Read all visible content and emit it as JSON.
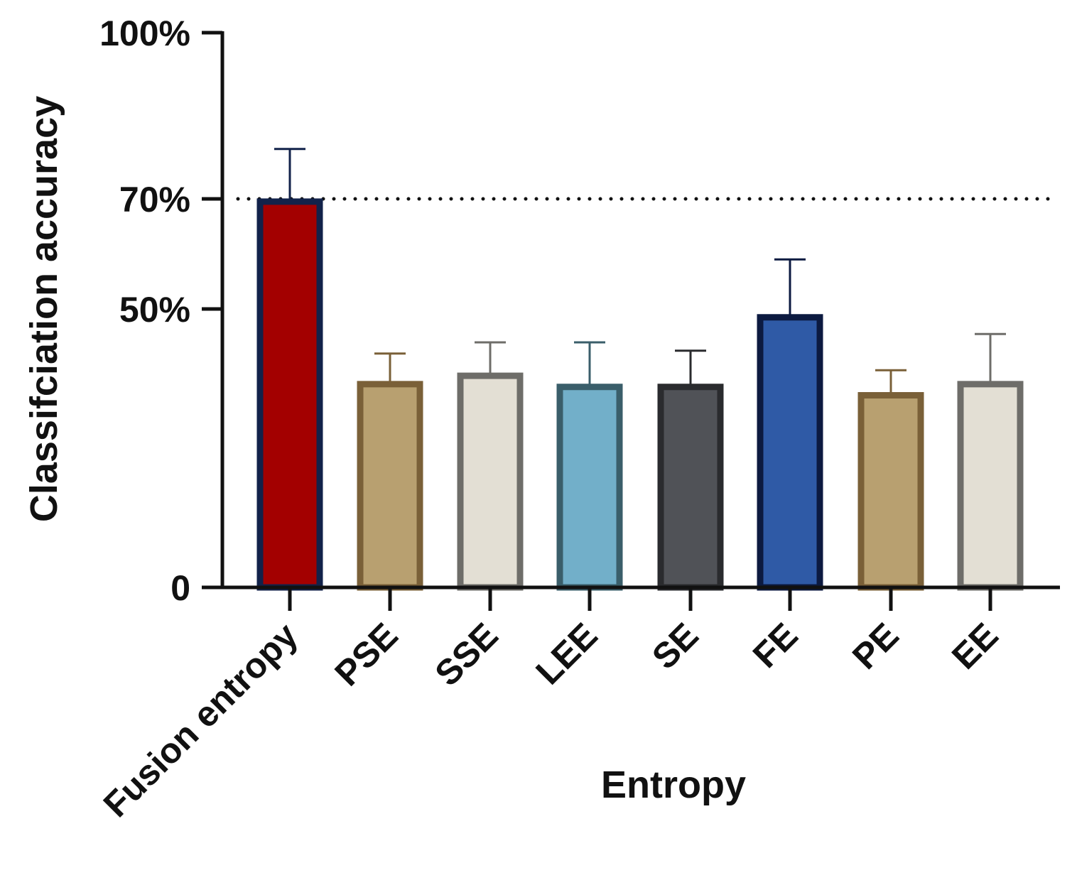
{
  "chart_data": {
    "type": "bar",
    "title": "",
    "xlabel": "Entropy",
    "ylabel": "Classifciation accuracy",
    "ylim": [
      0,
      100
    ],
    "y_ticks": [
      {
        "value": 0,
        "label": "0"
      },
      {
        "value": 50,
        "label": "50%"
      },
      {
        "value": 70,
        "label": "70%"
      },
      {
        "value": 100,
        "label": "100%"
      }
    ],
    "reference_line": {
      "value": 70,
      "style": "dotted"
    },
    "categories": [
      "Fusion entropy",
      "PSE",
      "SSE",
      "LEE",
      "SE",
      "FE",
      "PE",
      "EE"
    ],
    "values": [
      69.5,
      36.5,
      38,
      36,
      36,
      48.5,
      34.5,
      36.5
    ],
    "errors": [
      9.5,
      5.5,
      6,
      8,
      6.5,
      10.5,
      4.5,
      9
    ],
    "colors": {
      "fill": [
        "#a30000",
        "#b8a070",
        "#e3dfd4",
        "#72afc9",
        "#505257",
        "#2f5aa6",
        "#b8a070",
        "#e3dfd4"
      ],
      "stroke": [
        "#12224a",
        "#7a6038",
        "#6e6d69",
        "#3a5e6a",
        "#2a2b2e",
        "#0c1a40",
        "#7a6038",
        "#6e6d69"
      ],
      "axis": "#111111"
    }
  }
}
